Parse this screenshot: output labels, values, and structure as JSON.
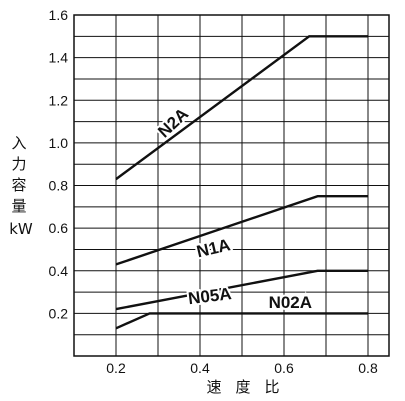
{
  "chart_data": {
    "type": "line",
    "title": "",
    "xlabel": "速度比",
    "ylabel_chars": [
      "入",
      "力",
      "容",
      "量"
    ],
    "ylabel_unit": "kW",
    "xlim": [
      0.1,
      0.85
    ],
    "ylim": [
      0,
      1.6
    ],
    "x_ticks": [
      "0.2",
      "0.4",
      "0.6",
      "0.8"
    ],
    "y_ticks": [
      "0.2",
      "0.4",
      "0.6",
      "0.8",
      "1.0",
      "1.2",
      "1.4",
      "1.6"
    ],
    "grid": true,
    "series": [
      {
        "name": "N2A",
        "x": [
          0.2,
          0.66,
          0.8
        ],
        "y": [
          0.83,
          1.5,
          1.5
        ]
      },
      {
        "name": "N1A",
        "x": [
          0.2,
          0.68,
          0.8
        ],
        "y": [
          0.43,
          0.75,
          0.75
        ]
      },
      {
        "name": "N05A",
        "x": [
          0.2,
          0.68,
          0.8
        ],
        "y": [
          0.22,
          0.4,
          0.4
        ]
      },
      {
        "name": "N02A",
        "x": [
          0.2,
          0.28,
          0.8
        ],
        "y": [
          0.13,
          0.2,
          0.2
        ]
      }
    ]
  }
}
